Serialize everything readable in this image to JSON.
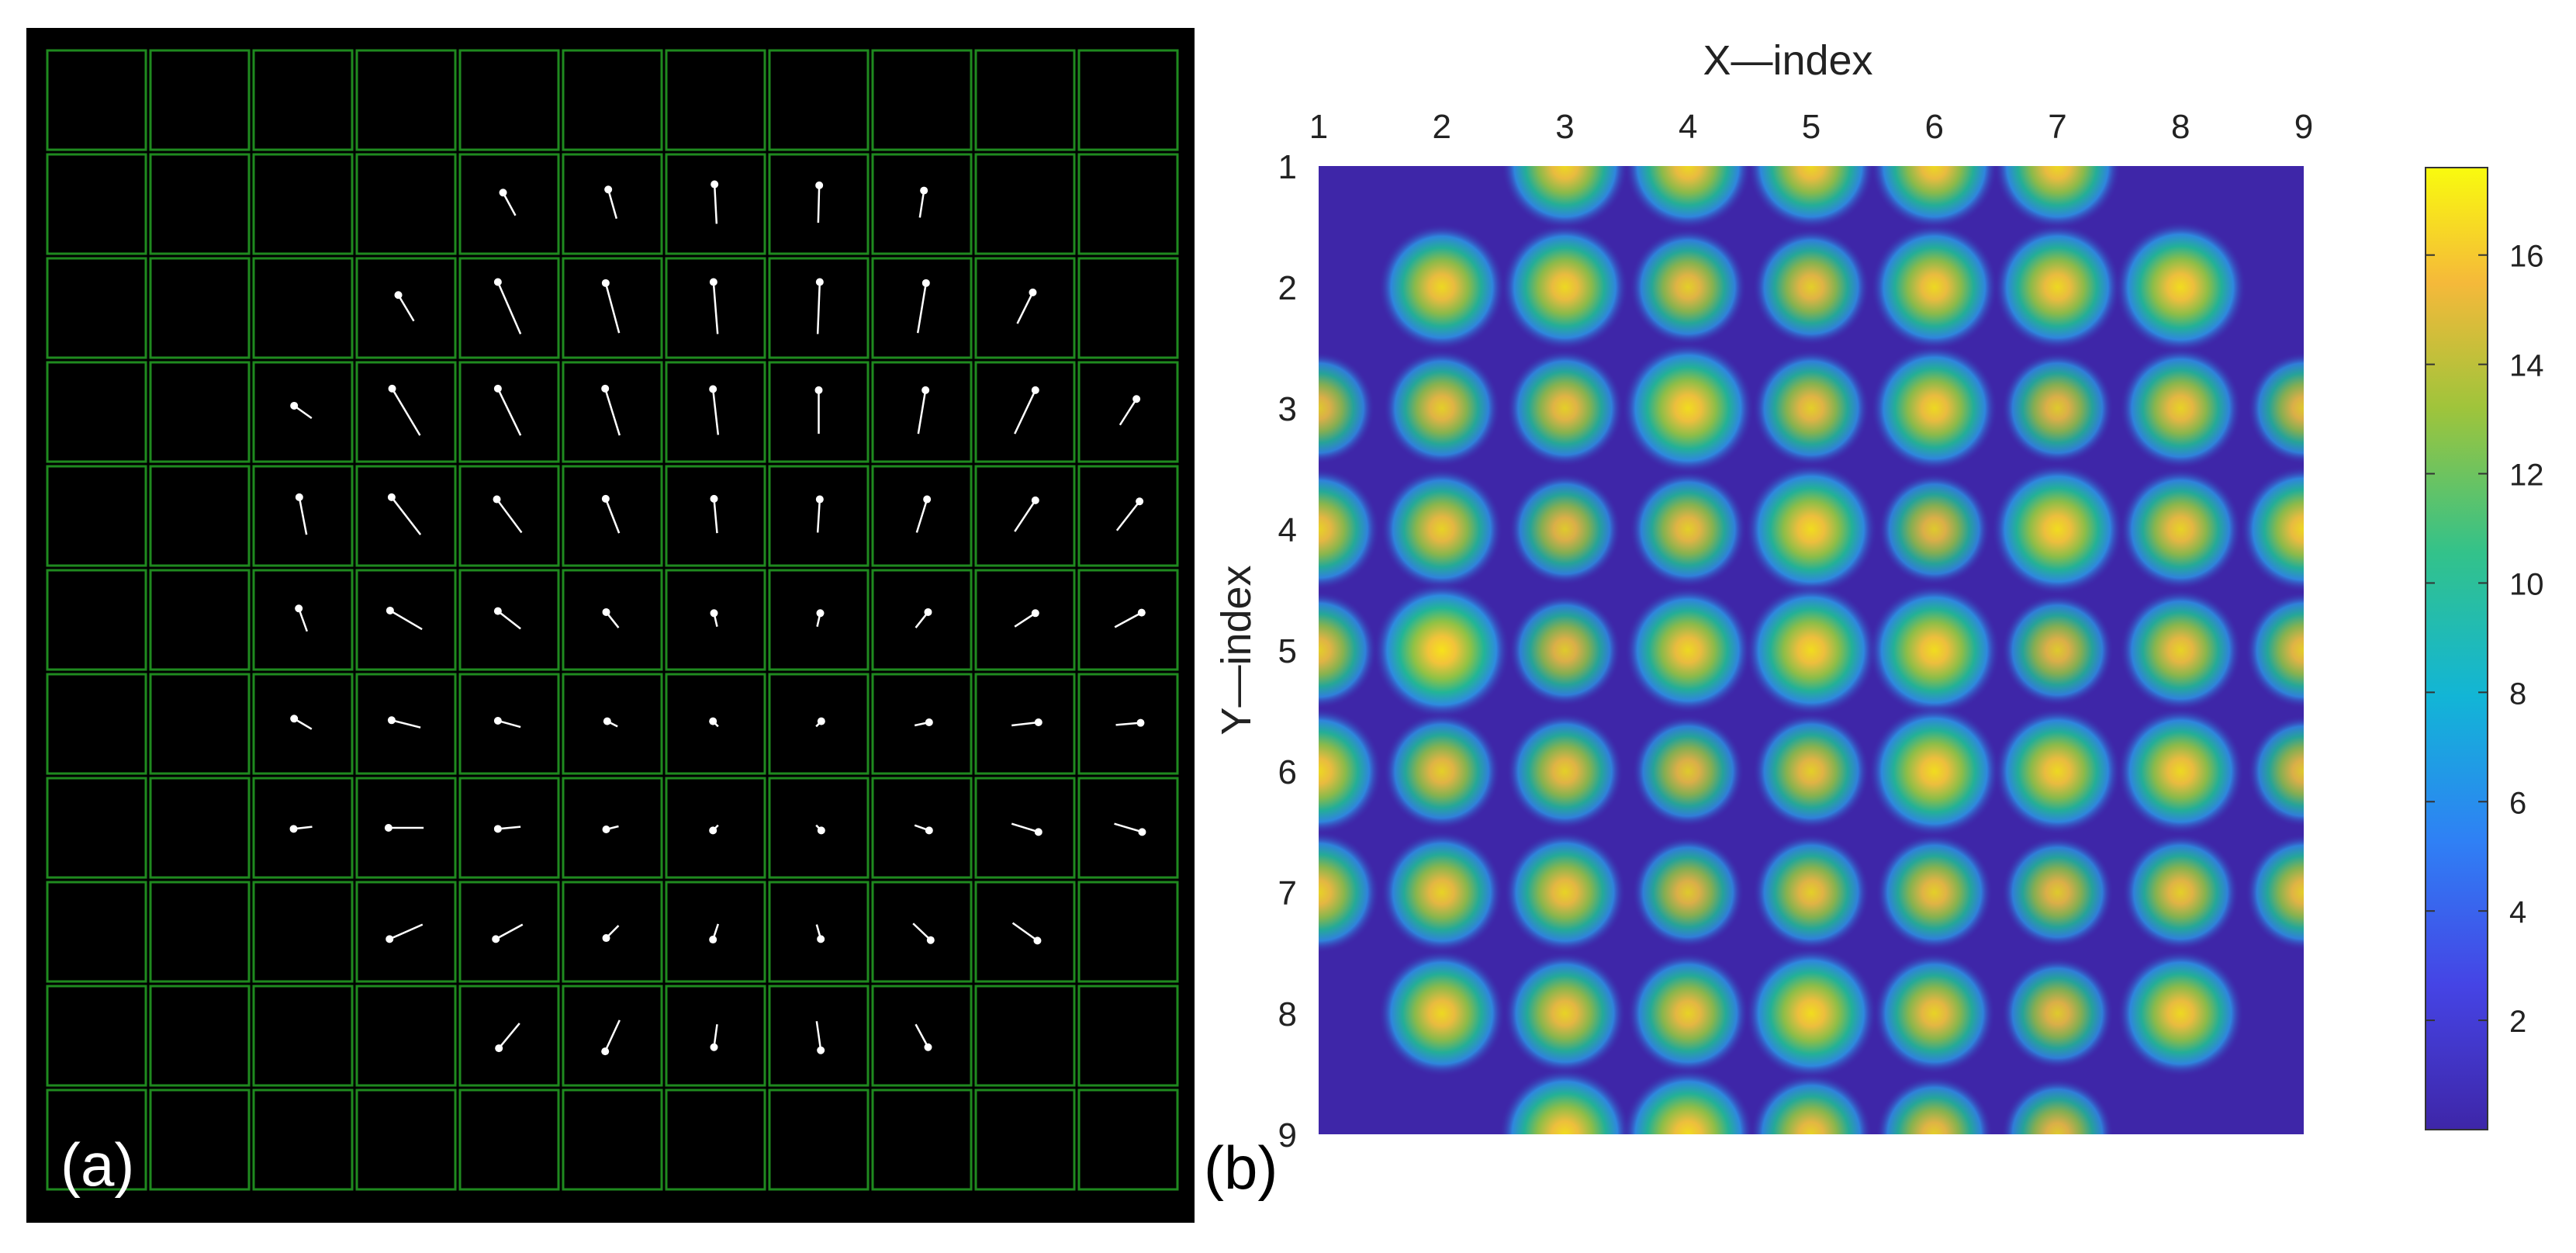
{
  "panel_a": {
    "label": "(a)",
    "grid_rows": 11,
    "grid_cols": 11,
    "colors": {
      "background": "#000000",
      "grid": "#1f8a1f",
      "vector": "#ffffff"
    }
  },
  "panel_b": {
    "label": "(b)",
    "colormap": "parula",
    "colors": {
      "low": "#3e26a8",
      "high": "#f9fb0e"
    }
  },
  "chart_data": [
    {
      "type": "quiver",
      "title": "",
      "rows": 11,
      "cols": 11,
      "vectors": [
        {
          "row": 1,
          "col": 4,
          "dx": 0.12,
          "dy": 0.22
        },
        {
          "row": 1,
          "col": 5,
          "dx": 0.08,
          "dy": 0.28
        },
        {
          "row": 1,
          "col": 6,
          "dx": 0.02,
          "dy": 0.38
        },
        {
          "row": 1,
          "col": 7,
          "dx": -0.01,
          "dy": 0.36
        },
        {
          "row": 1,
          "col": 8,
          "dx": -0.04,
          "dy": 0.26
        },
        {
          "row": 2,
          "col": 3,
          "dx": 0.15,
          "dy": 0.25
        },
        {
          "row": 2,
          "col": 4,
          "dx": 0.22,
          "dy": 0.5
        },
        {
          "row": 2,
          "col": 5,
          "dx": 0.13,
          "dy": 0.48
        },
        {
          "row": 2,
          "col": 6,
          "dx": 0.04,
          "dy": 0.5
        },
        {
          "row": 2,
          "col": 7,
          "dx": -0.02,
          "dy": 0.5
        },
        {
          "row": 2,
          "col": 8,
          "dx": -0.08,
          "dy": 0.48
        },
        {
          "row": 2,
          "col": 9,
          "dx": -0.15,
          "dy": 0.3
        },
        {
          "row": 3,
          "col": 2,
          "dx": 0.17,
          "dy": 0.12
        },
        {
          "row": 3,
          "col": 3,
          "dx": 0.27,
          "dy": 0.45
        },
        {
          "row": 3,
          "col": 4,
          "dx": 0.22,
          "dy": 0.45
        },
        {
          "row": 3,
          "col": 5,
          "dx": 0.14,
          "dy": 0.45
        },
        {
          "row": 3,
          "col": 6,
          "dx": 0.05,
          "dy": 0.44
        },
        {
          "row": 3,
          "col": 7,
          "dx": 0.0,
          "dy": 0.42
        },
        {
          "row": 3,
          "col": 8,
          "dx": -0.07,
          "dy": 0.42
        },
        {
          "row": 3,
          "col": 9,
          "dx": -0.2,
          "dy": 0.42
        },
        {
          "row": 3,
          "col": 10,
          "dx": -0.16,
          "dy": 0.25
        },
        {
          "row": 4,
          "col": 2,
          "dx": 0.07,
          "dy": 0.36
        },
        {
          "row": 4,
          "col": 3,
          "dx": 0.28,
          "dy": 0.36
        },
        {
          "row": 4,
          "col": 4,
          "dx": 0.24,
          "dy": 0.32
        },
        {
          "row": 4,
          "col": 5,
          "dx": 0.13,
          "dy": 0.33
        },
        {
          "row": 4,
          "col": 6,
          "dx": 0.03,
          "dy": 0.33
        },
        {
          "row": 4,
          "col": 7,
          "dx": -0.02,
          "dy": 0.32
        },
        {
          "row": 4,
          "col": 8,
          "dx": -0.1,
          "dy": 0.32
        },
        {
          "row": 4,
          "col": 9,
          "dx": -0.2,
          "dy": 0.3
        },
        {
          "row": 4,
          "col": 10,
          "dx": -0.22,
          "dy": 0.28
        },
        {
          "row": 5,
          "col": 2,
          "dx": 0.08,
          "dy": 0.22
        },
        {
          "row": 5,
          "col": 3,
          "dx": 0.31,
          "dy": 0.18
        },
        {
          "row": 5,
          "col": 4,
          "dx": 0.22,
          "dy": 0.17
        },
        {
          "row": 5,
          "col": 5,
          "dx": 0.12,
          "dy": 0.15
        },
        {
          "row": 5,
          "col": 6,
          "dx": 0.03,
          "dy": 0.13
        },
        {
          "row": 5,
          "col": 7,
          "dx": -0.03,
          "dy": 0.13
        },
        {
          "row": 5,
          "col": 8,
          "dx": -0.12,
          "dy": 0.15
        },
        {
          "row": 5,
          "col": 9,
          "dx": -0.2,
          "dy": 0.13
        },
        {
          "row": 5,
          "col": 10,
          "dx": -0.26,
          "dy": 0.14
        },
        {
          "row": 6,
          "col": 2,
          "dx": 0.17,
          "dy": 0.1
        },
        {
          "row": 6,
          "col": 3,
          "dx": 0.28,
          "dy": 0.07
        },
        {
          "row": 6,
          "col": 4,
          "dx": 0.22,
          "dy": 0.06
        },
        {
          "row": 6,
          "col": 5,
          "dx": 0.1,
          "dy": 0.05
        },
        {
          "row": 6,
          "col": 6,
          "dx": 0.05,
          "dy": 0.05
        },
        {
          "row": 6,
          "col": 7,
          "dx": -0.05,
          "dy": 0.05
        },
        {
          "row": 6,
          "col": 8,
          "dx": -0.14,
          "dy": 0.03
        },
        {
          "row": 6,
          "col": 9,
          "dx": -0.26,
          "dy": 0.03
        },
        {
          "row": 6,
          "col": 10,
          "dx": -0.24,
          "dy": 0.02
        },
        {
          "row": 7,
          "col": 2,
          "dx": 0.18,
          "dy": -0.02
        },
        {
          "row": 7,
          "col": 3,
          "dx": 0.34,
          "dy": 0.0
        },
        {
          "row": 7,
          "col": 4,
          "dx": 0.22,
          "dy": -0.02
        },
        {
          "row": 7,
          "col": 5,
          "dx": 0.12,
          "dy": -0.03
        },
        {
          "row": 7,
          "col": 6,
          "dx": 0.05,
          "dy": -0.05
        },
        {
          "row": 7,
          "col": 7,
          "dx": -0.05,
          "dy": -0.05
        },
        {
          "row": 7,
          "col": 8,
          "dx": -0.14,
          "dy": -0.05
        },
        {
          "row": 7,
          "col": 9,
          "dx": -0.26,
          "dy": -0.08
        },
        {
          "row": 7,
          "col": 10,
          "dx": -0.27,
          "dy": -0.08
        },
        {
          "row": 8,
          "col": 3,
          "dx": 0.32,
          "dy": -0.14
        },
        {
          "row": 8,
          "col": 4,
          "dx": 0.26,
          "dy": -0.14
        },
        {
          "row": 8,
          "col": 5,
          "dx": 0.12,
          "dy": -0.12
        },
        {
          "row": 8,
          "col": 6,
          "dx": 0.05,
          "dy": -0.15
        },
        {
          "row": 8,
          "col": 7,
          "dx": -0.04,
          "dy": -0.14
        },
        {
          "row": 8,
          "col": 8,
          "dx": -0.17,
          "dy": -0.16
        },
        {
          "row": 8,
          "col": 9,
          "dx": -0.24,
          "dy": -0.17
        },
        {
          "row": 9,
          "col": 4,
          "dx": 0.2,
          "dy": -0.24
        },
        {
          "row": 9,
          "col": 5,
          "dx": 0.14,
          "dy": -0.3
        },
        {
          "row": 9,
          "col": 6,
          "dx": 0.03,
          "dy": -0.22
        },
        {
          "row": 9,
          "col": 7,
          "dx": -0.04,
          "dy": -0.28
        },
        {
          "row": 9,
          "col": 8,
          "dx": -0.12,
          "dy": -0.22
        }
      ]
    },
    {
      "type": "heatmap",
      "title": "",
      "xlabel": "X—index",
      "ylabel": "Y—index",
      "x_ticks": [
        "1",
        "2",
        "3",
        "4",
        "5",
        "6",
        "7",
        "8",
        "9"
      ],
      "y_ticks": [
        "1",
        "2",
        "3",
        "4",
        "5",
        "6",
        "7",
        "8",
        "9"
      ],
      "xlim": [
        1,
        9
      ],
      "ylim": [
        1,
        9
      ],
      "colorbar": {
        "min": 0,
        "max": 17.6,
        "ticks": [
          2,
          4,
          6,
          8,
          10,
          12,
          14,
          16
        ]
      },
      "peaks": [
        [
          null,
          null,
          15,
          15,
          15,
          15,
          15,
          null,
          null
        ],
        [
          null,
          15,
          15,
          13,
          13,
          15,
          15,
          16,
          null
        ],
        [
          12,
          13,
          13,
          16,
          13,
          15,
          12,
          14,
          12
        ],
        [
          14,
          14,
          12,
          13,
          16,
          12,
          16,
          14,
          15
        ],
        [
          13,
          17,
          12,
          15,
          16,
          16,
          12,
          14,
          13
        ],
        [
          15,
          13,
          13,
          12,
          13,
          16,
          15,
          15,
          12
        ],
        [
          14,
          14,
          14,
          12,
          13,
          13,
          12,
          13,
          13
        ],
        [
          null,
          15,
          14,
          14,
          16,
          14,
          12,
          15,
          null
        ],
        [
          null,
          null,
          16,
          16,
          14,
          13,
          12,
          null,
          null
        ]
      ]
    }
  ]
}
